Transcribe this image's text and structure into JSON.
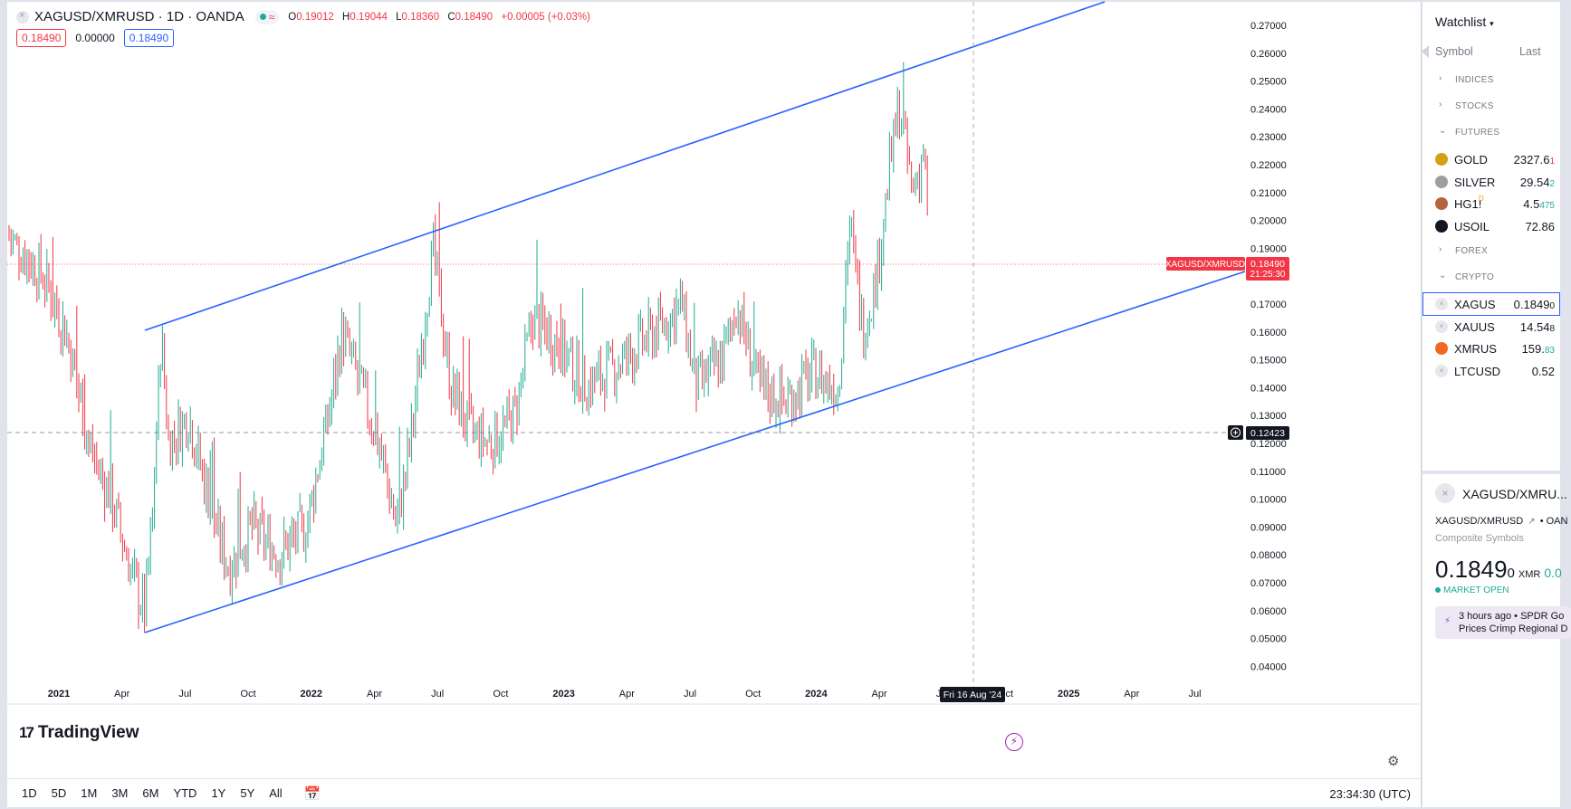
{
  "chart": {
    "symbol_title": "XAGUSD/XMRUSD · 1D · OANDA",
    "wave_glyph": "≈",
    "ohlc": {
      "o_label": "O",
      "o": "0.19012",
      "h_label": "H",
      "h": "0.19044",
      "l_label": "L",
      "l": "0.18360",
      "c_label": "C",
      "c": "0.18490",
      "change": "+0.00005 (+0.03%)"
    },
    "bid": "0.18490",
    "spread": "0.00000",
    "ask": "0.18490",
    "logo_text": "TradingView",
    "logo_mark": "17",
    "price_axis_labels": [
      "0.27000",
      "0.26000",
      "0.25000",
      "0.24000",
      "0.23000",
      "0.22000",
      "0.21000",
      "0.20000",
      "0.19000",
      "0.17000",
      "0.16000",
      "0.15000",
      "0.14000",
      "0.13000",
      "0.12000",
      "0.11000",
      "0.10000",
      "0.09000",
      "0.08000",
      "0.07000",
      "0.06000",
      "0.05000",
      "0.04000"
    ],
    "time_axis_labels": [
      {
        "t": "2021",
        "bold": true
      },
      {
        "t": "Apr"
      },
      {
        "t": "Jul"
      },
      {
        "t": "Oct"
      },
      {
        "t": "2022",
        "bold": true
      },
      {
        "t": "Apr"
      },
      {
        "t": "Jul"
      },
      {
        "t": "Oct"
      },
      {
        "t": "2023",
        "bold": true
      },
      {
        "t": "Apr"
      },
      {
        "t": "Jul"
      },
      {
        "t": "Oct"
      },
      {
        "t": "2024",
        "bold": true
      },
      {
        "t": "Apr"
      },
      {
        "t": "Jul"
      },
      {
        "t": "Oct"
      },
      {
        "t": "2025",
        "bold": true
      },
      {
        "t": "Apr"
      },
      {
        "t": "Jul"
      }
    ],
    "price_tag_symbol": "XAGUSD/XMRUSD",
    "price_tag_value": "0.18490",
    "price_tag_countdown": "21:25:30",
    "crosshair_price": "0.12423",
    "crosshair_date": "Fri 16 Aug '24",
    "up_color": "#22ab94",
    "down_color": "#f23645",
    "trendline_color": "#2962ff"
  },
  "bottom_bar": {
    "ranges": [
      "1D",
      "5D",
      "1M",
      "3M",
      "6M",
      "YTD",
      "1Y",
      "5Y",
      "All"
    ],
    "clock": "23:34:30 (UTC)"
  },
  "watchlist": {
    "title": "Watchlist",
    "col_symbol": "Symbol",
    "col_last": "Last",
    "sections": [
      {
        "label": "INDICES",
        "open": false
      },
      {
        "label": "STOCKS",
        "open": false
      },
      {
        "label": "FUTURES",
        "open": true
      },
      {
        "label": "FOREX",
        "open": false
      },
      {
        "label": "CRYPTO",
        "open": true
      }
    ],
    "futures": [
      {
        "name": "GOLD",
        "price_main": "2327.6",
        "price_tail": "1",
        "tail_class": "lo",
        "icon_color": "#d4a017",
        "icon": "gold-icon"
      },
      {
        "name": "SILVER",
        "price_main": "29.54",
        "price_tail": "2",
        "tail_class": "hi",
        "icon_color": "#9e9e9e",
        "icon": "silver-icon"
      },
      {
        "name": "HG1!",
        "price_main": "4.5",
        "price_tail": "475",
        "tail_class": "hi",
        "icon_color": "#b5653b",
        "icon": "copper-icon",
        "badge": "D"
      },
      {
        "name": "USOIL",
        "price_main": "72.86",
        "price_tail": "",
        "tail_class": "",
        "icon_color": "#131722",
        "icon": "oil-drop-icon"
      }
    ],
    "crypto": [
      {
        "name": "XAGUS",
        "price_main": "0.1849",
        "price_tail": "0",
        "tail_class": "",
        "icon_color": "#e6e8ee",
        "icon": "composite-icon",
        "selected": true
      },
      {
        "name": "XAUUS",
        "price_main": "14.54",
        "price_tail": "8",
        "tail_class": "",
        "icon_color": "#e6e8ee",
        "icon": "composite-icon"
      },
      {
        "name": "XMRUS",
        "price_main": "159.",
        "price_tail": "83",
        "tail_class": "hi",
        "icon_color": "#f26822",
        "icon": "monero-icon"
      },
      {
        "name": "LTCUSD",
        "price_main": "0.52",
        "price_tail": "",
        "tail_class": "",
        "icon_color": "#e6e8ee",
        "icon": "composite-icon"
      }
    ]
  },
  "details": {
    "title": "XAGUSD/XMRU...",
    "symbol": "XAGUSD/XMRUSD",
    "exchange": "OAN",
    "type": "Composite Symbols",
    "price_main": "0.1849",
    "price_tail": "0",
    "currency": "XMR",
    "change_partial": "0.0",
    "status": "MARKET OPEN",
    "news_line1": "3 hours ago  •  SPDR Go",
    "news_line2": "Prices Crimp Regional D"
  }
}
